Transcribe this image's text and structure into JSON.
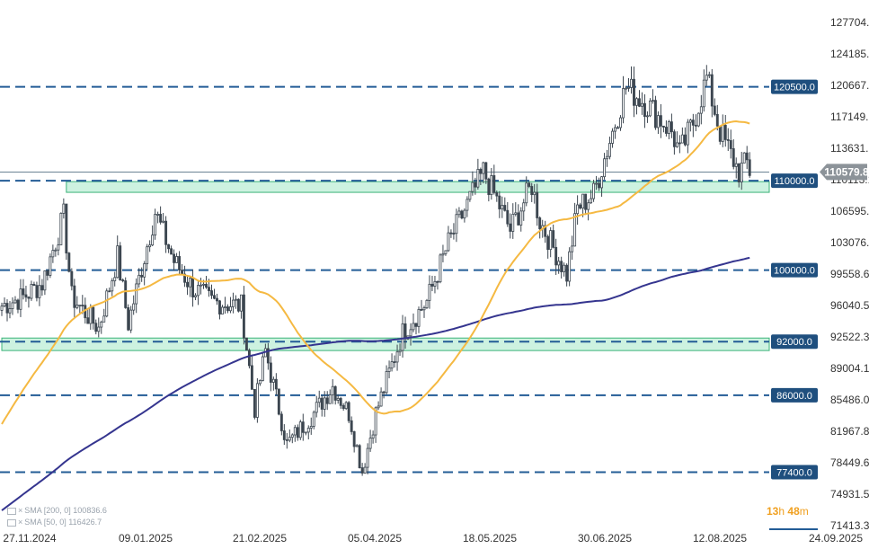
{
  "chart_data": {
    "type": "candlestick",
    "title": "",
    "xlabel": "",
    "ylabel": "",
    "ylim": [
      71413.3,
      127704.0
    ],
    "y_ticks": [
      127704.0,
      124185.8,
      120667.6,
      117149.5,
      113631.3,
      110113.1,
      106595.0,
      103076.8,
      99558.6,
      96040.5,
      92522.3,
      89004.1,
      85486.0,
      81967.8,
      78449.6,
      74931.5,
      71413.3
    ],
    "y_tick_labels": [
      "127704.0",
      "124185.8",
      "120667.6",
      "117149.5",
      "113631.3",
      "110113.1",
      "106595.0",
      "103076.8",
      "99558.6",
      "96040.5",
      "92522.3",
      "89004.1",
      "85486.0",
      "81967.8",
      "78449.6",
      "74931.5",
      "71413.3"
    ],
    "x_tick_labels": [
      "27.11.2024",
      "09.01.2025",
      "21.02.2025",
      "05.04.2025",
      "18.05.2025",
      "30.06.2025",
      "12.08.2025",
      "24.09.2025"
    ],
    "current_price": {
      "value": 110579.8,
      "label": "110579.8"
    },
    "levels": [
      {
        "value": 120500,
        "label": "120500.0"
      },
      {
        "value": 110000,
        "label": "110000.0"
      },
      {
        "value": 100000,
        "label": "100000.0"
      },
      {
        "value": 92000,
        "label": "92000.0"
      },
      {
        "value": 86000,
        "label": "86000.0"
      },
      {
        "value": 77400,
        "label": "77400.0"
      }
    ],
    "zones": [
      {
        "from": 108700,
        "to": 109900,
        "start_date": "2024-12-18"
      },
      {
        "from": 91000,
        "to": 92400,
        "start_date": "2024-11-24"
      }
    ],
    "indicators": [
      {
        "label": "SMA [200, 0] 100836.6",
        "color": "#35358f"
      },
      {
        "label": "SMA [50, 0] 116426.7",
        "color": "#f5b942"
      }
    ],
    "timer": {
      "hours": "13",
      "h_unit": "h",
      "minutes": "48",
      "m_unit": "m"
    },
    "x_range": [
      "2024-11-24",
      "2025-09-30"
    ],
    "anchors": [
      [
        "2024-11-24",
        96000
      ],
      [
        "2024-12-02",
        97000
      ],
      [
        "2024-12-09",
        98500
      ],
      [
        "2024-12-17",
        106000
      ],
      [
        "2024-12-20",
        97000
      ],
      [
        "2024-12-30",
        93500
      ],
      [
        "2025-01-06",
        101500
      ],
      [
        "2025-01-10",
        94000
      ],
      [
        "2025-01-20",
        106500
      ],
      [
        "2025-01-27",
        101000
      ],
      [
        "2025-02-03",
        98000
      ],
      [
        "2025-02-10",
        96500
      ],
      [
        "2025-02-21",
        96000
      ],
      [
        "2025-02-26",
        84500
      ],
      [
        "2025-03-02",
        91000
      ],
      [
        "2025-03-10",
        80500
      ],
      [
        "2025-03-20",
        84000
      ],
      [
        "2025-03-27",
        87000
      ],
      [
        "2025-04-02",
        84000
      ],
      [
        "2025-04-07",
        77500
      ],
      [
        "2025-04-12",
        84000
      ],
      [
        "2025-04-22",
        93000
      ],
      [
        "2025-05-01",
        96500
      ],
      [
        "2025-05-09",
        103000
      ],
      [
        "2025-05-22",
        111000
      ],
      [
        "2025-05-26",
        108500
      ],
      [
        "2025-06-01",
        104500
      ],
      [
        "2025-06-09",
        109500
      ],
      [
        "2025-06-12",
        105500
      ],
      [
        "2025-06-22",
        99500
      ],
      [
        "2025-06-26",
        107000
      ],
      [
        "2025-07-02",
        108500
      ],
      [
        "2025-07-10",
        116500
      ],
      [
        "2025-07-14",
        120500
      ],
      [
        "2025-07-22",
        118500
      ],
      [
        "2025-07-31",
        115500
      ],
      [
        "2025-08-03",
        113000
      ],
      [
        "2025-08-08",
        116500
      ],
      [
        "2025-08-13",
        121500
      ],
      [
        "2025-08-18",
        115500
      ],
      [
        "2025-08-25",
        111000
      ],
      [
        "2025-08-28",
        112000
      ],
      [
        "2025-08-29",
        110580
      ]
    ]
  }
}
